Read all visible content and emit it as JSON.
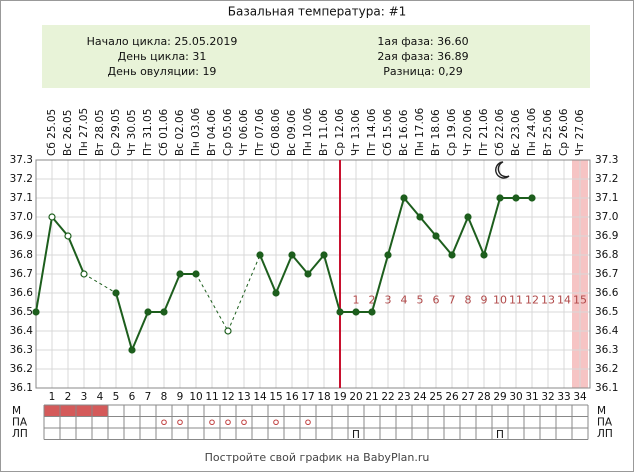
{
  "title": "Базальная температура: #1",
  "info": {
    "left": [
      "Начало цикла: 25.05.2019",
      "День цикла: 31",
      "День овуляции: 19"
    ],
    "right": [
      "1ая фаза: 36.60",
      "2ая фаза: 36.89",
      "Разница: 0,29"
    ]
  },
  "chart_data": {
    "type": "line",
    "days": [
      1,
      2,
      3,
      4,
      5,
      6,
      7,
      8,
      9,
      10,
      11,
      12,
      13,
      14,
      15,
      16,
      17,
      18,
      19,
      20,
      21,
      22,
      23,
      24,
      25,
      26,
      27,
      28,
      29,
      30,
      31,
      32,
      33,
      34
    ],
    "dates": [
      "Сб 25.05",
      "Вс 26.05",
      "Пн 27.05",
      "Вт 28.05",
      "Ср 29.05",
      "Чт 30.05",
      "Пт 31.05",
      "Сб 01.06",
      "Вс 02.06",
      "Пн 03.06",
      "Вт 04.06",
      "Ср 05.06",
      "Чт 06.06",
      "Пт 07.06",
      "Сб 08.06",
      "Вс 09.06",
      "Пн 10.06",
      "Вт 11.06",
      "Ср 12.06",
      "Чт 13.06",
      "Пт 14.06",
      "Сб 15.06",
      "Вс 16.06",
      "Пн 17.06",
      "Вт 18.06",
      "Ср 19.06",
      "Чт 20.06",
      "Пт 21.06",
      "Сб 22.06",
      "Вс 23.06",
      "Пн 24.06",
      "Вт 25.06",
      "Ср 26.06",
      "Чт 27.06"
    ],
    "values": [
      37.0,
      36.9,
      36.7,
      null,
      36.6,
      36.3,
      36.5,
      36.5,
      36.7,
      36.7,
      null,
      36.4,
      null,
      36.8,
      36.6,
      36.8,
      36.7,
      36.8,
      36.5,
      36.5,
      36.5,
      36.8,
      37.1,
      37.0,
      36.9,
      36.8,
      37.0,
      36.8,
      37.1,
      37.1,
      37.1,
      null,
      null,
      null
    ],
    "day0_value": 36.5,
    "open_point_days": [
      1,
      2,
      3,
      12
    ],
    "color": "#1d5e1d",
    "ylim": [
      36.1,
      37.3
    ],
    "yticks": [
      36.1,
      36.2,
      36.3,
      36.4,
      36.5,
      36.6,
      36.7,
      36.8,
      36.9,
      {
        "value": 37.0,
        "label": "37.0"
      },
      37.1,
      37.2,
      37.3
    ],
    "grid": true,
    "ovulation_day": 19,
    "ovulation_color": "#c8102e",
    "phase2": {
      "start_day": 20,
      "labels": [
        1,
        2,
        3,
        4,
        5,
        6,
        7,
        8,
        9,
        10,
        11,
        12,
        13,
        14,
        15
      ],
      "color": "#b04848"
    },
    "highlight_day": 34,
    "highlight_color": "#f6c4c4",
    "rows": {
      "labels": [
        "М",
        "ПА",
        "ЛП"
      ],
      "m_days": [
        1,
        2,
        3,
        4
      ],
      "m_color": "#d45a5a",
      "pa_days": [
        8,
        9,
        11,
        12,
        13,
        15,
        17
      ],
      "pa_color": "#c04040",
      "lp": [
        {
          "day": 20,
          "label": "П"
        },
        {
          "day": 29,
          "label": "П"
        }
      ]
    }
  },
  "footer": "Постройте свой график на BabyPlan.ru"
}
